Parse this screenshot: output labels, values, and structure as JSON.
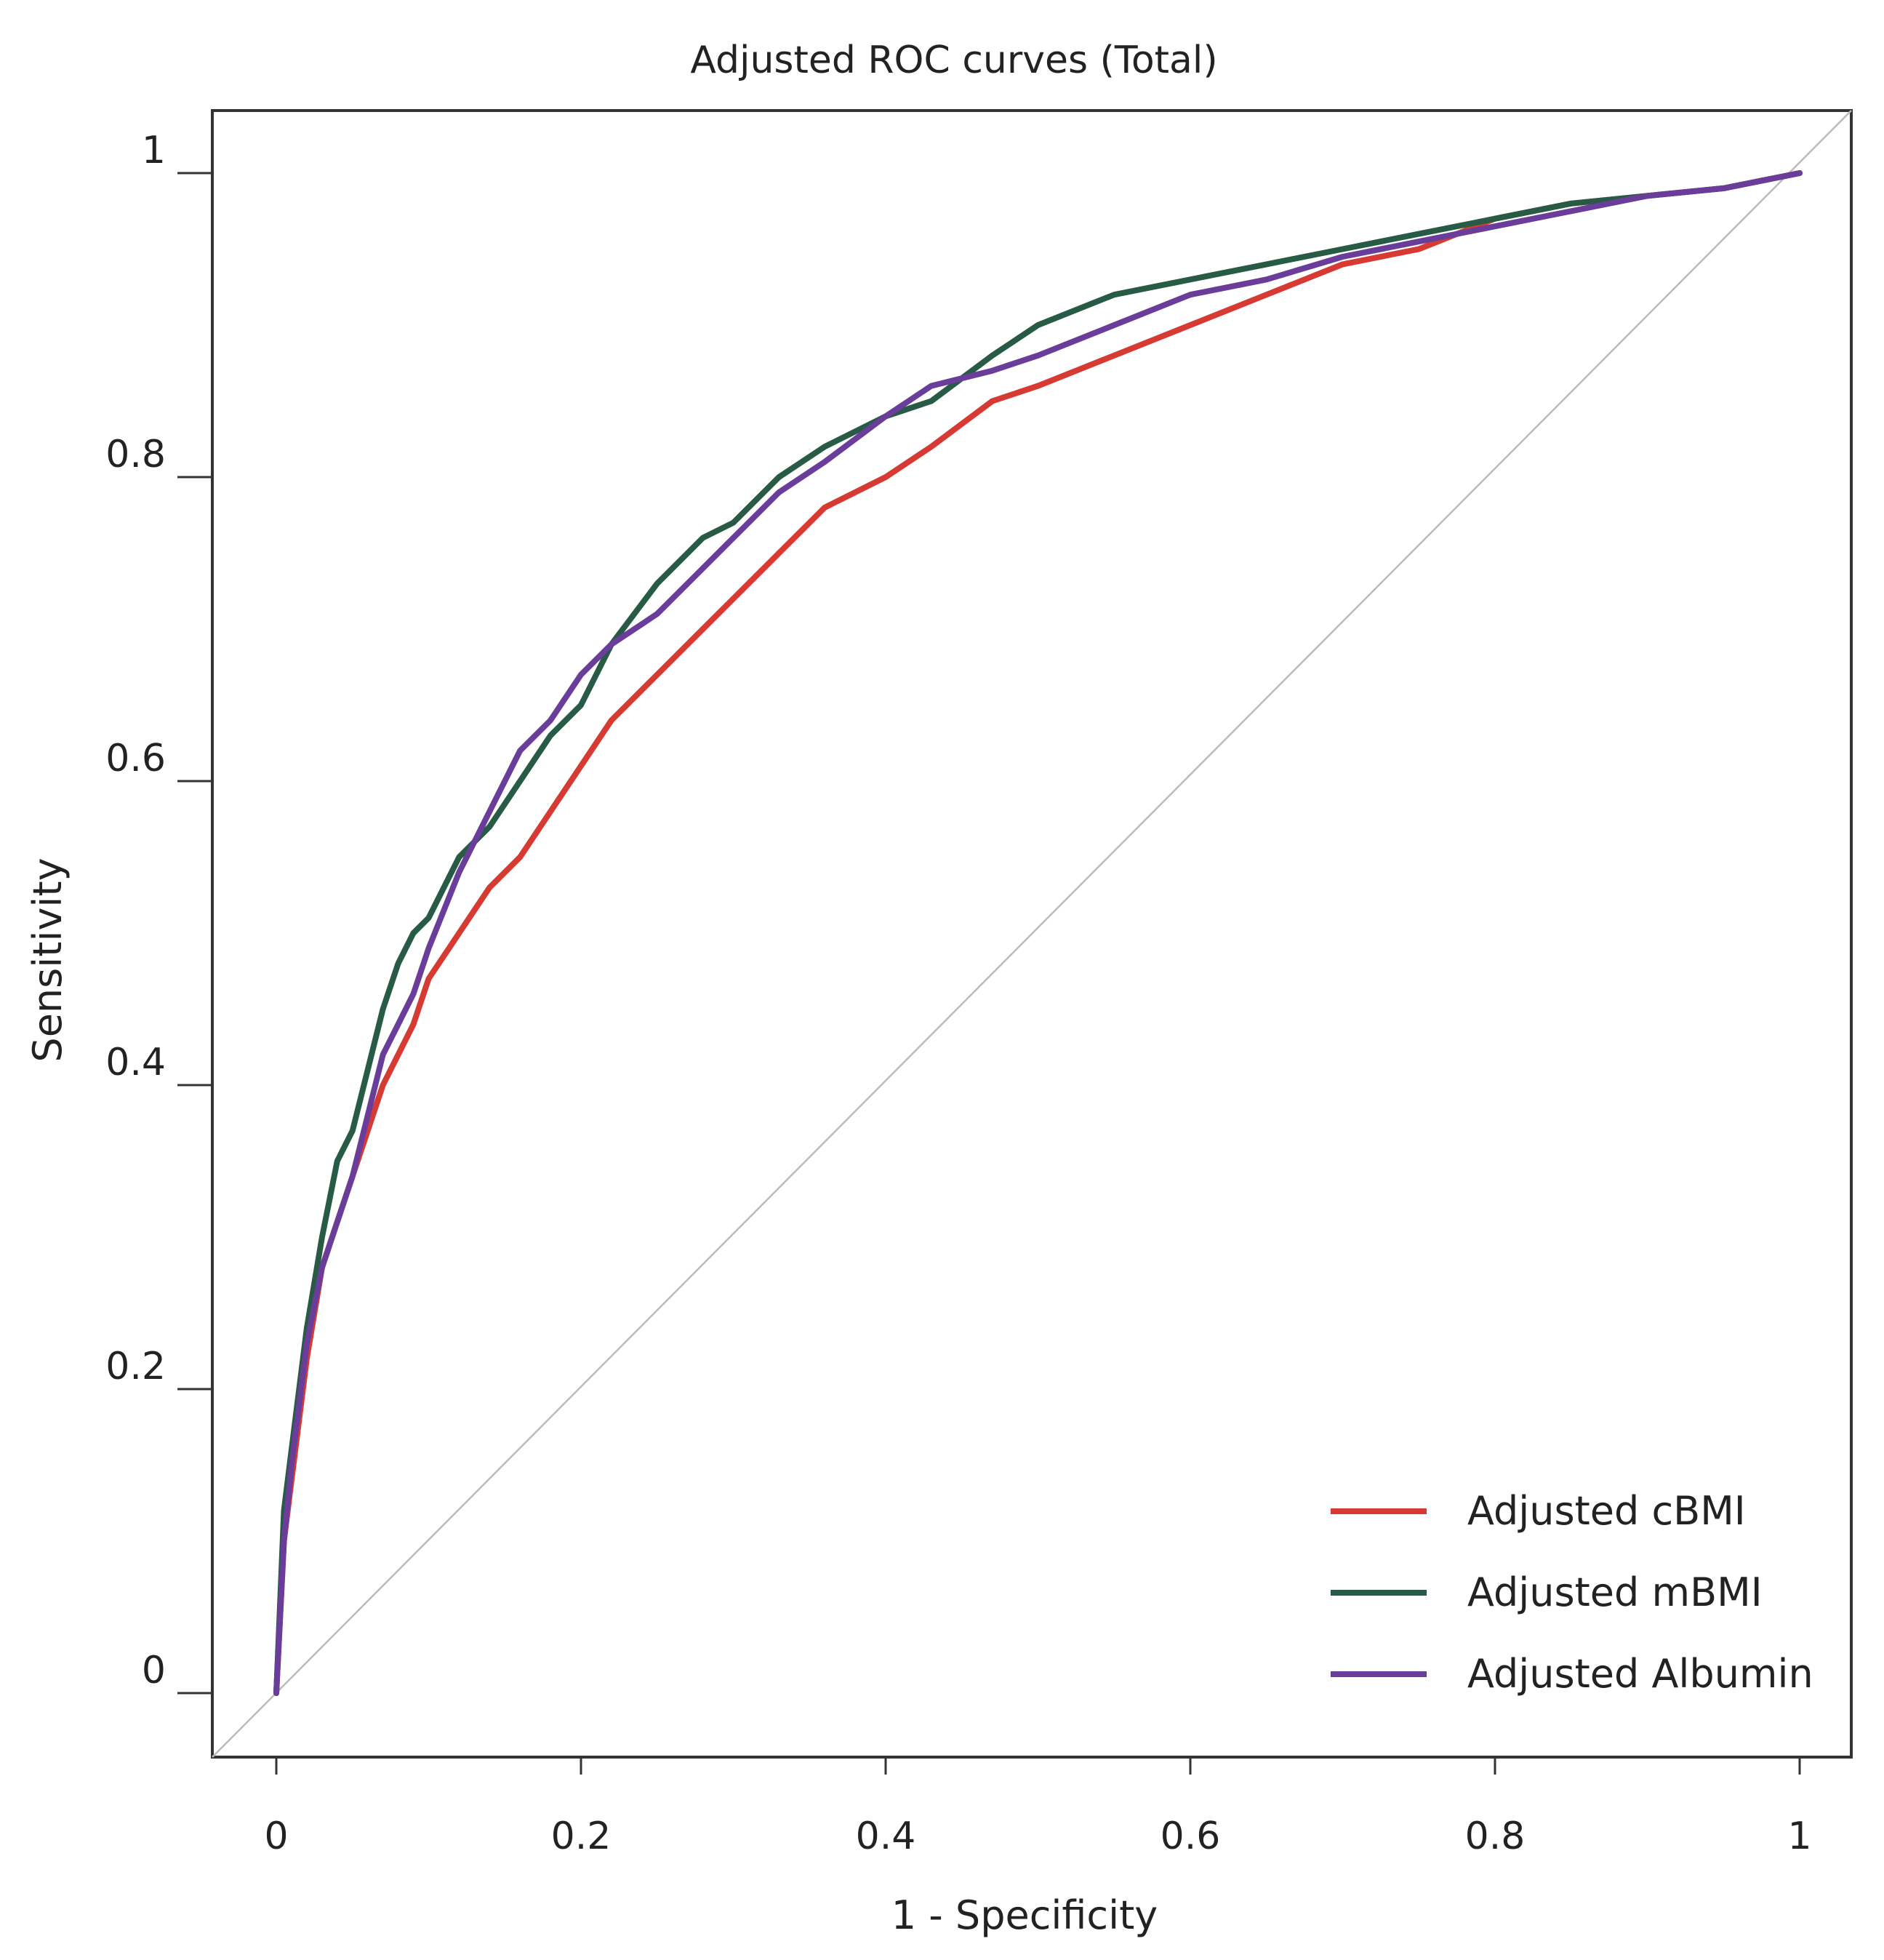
{
  "chart_data": {
    "type": "line",
    "title": "Adjusted ROC curves (Total)",
    "xlabel": "1 - Specificity",
    "ylabel": "Sensitivity",
    "xlim": [
      0,
      1
    ],
    "ylim": [
      0,
      1
    ],
    "x_ticks": [
      0,
      0.2,
      0.4,
      0.6,
      0.8,
      1
    ],
    "x_tick_labels": [
      "0",
      "0.2",
      "0.4",
      "0.6",
      "0.8",
      "1"
    ],
    "y_ticks": [
      0,
      0.2,
      0.4,
      0.6,
      0.8,
      1
    ],
    "y_tick_labels": [
      "0",
      "0.2",
      "0.4",
      "0.6",
      "0.8",
      "1"
    ],
    "grid": false,
    "legend_position": "bottom-right",
    "reference_line": {
      "name": "chance-diagonal",
      "color": "#bbbbbb"
    },
    "series": [
      {
        "name": "Adjusted cBMI",
        "color": "#d63a32",
        "x": [
          0,
          0.005,
          0.01,
          0.02,
          0.03,
          0.04,
          0.05,
          0.06,
          0.07,
          0.08,
          0.09,
          0.1,
          0.12,
          0.14,
          0.16,
          0.18,
          0.2,
          0.22,
          0.25,
          0.28,
          0.3,
          0.33,
          0.36,
          0.4,
          0.43,
          0.47,
          0.5,
          0.55,
          0.6,
          0.65,
          0.7,
          0.75,
          0.8,
          0.85,
          0.9,
          0.95,
          1
        ],
        "y": [
          0,
          0.1,
          0.14,
          0.22,
          0.28,
          0.31,
          0.34,
          0.37,
          0.4,
          0.42,
          0.44,
          0.47,
          0.5,
          0.53,
          0.55,
          0.58,
          0.61,
          0.64,
          0.67,
          0.7,
          0.72,
          0.75,
          0.78,
          0.8,
          0.82,
          0.85,
          0.86,
          0.88,
          0.9,
          0.92,
          0.94,
          0.95,
          0.97,
          0.98,
          0.985,
          0.99,
          1
        ]
      },
      {
        "name": "Adjusted mBMI",
        "color": "#275b45",
        "x": [
          0,
          0.005,
          0.01,
          0.02,
          0.03,
          0.04,
          0.05,
          0.06,
          0.07,
          0.08,
          0.09,
          0.1,
          0.12,
          0.14,
          0.16,
          0.18,
          0.2,
          0.22,
          0.25,
          0.28,
          0.3,
          0.33,
          0.36,
          0.4,
          0.43,
          0.47,
          0.5,
          0.55,
          0.6,
          0.65,
          0.7,
          0.75,
          0.8,
          0.85,
          0.9,
          0.95,
          1
        ],
        "y": [
          0,
          0.12,
          0.16,
          0.24,
          0.3,
          0.35,
          0.37,
          0.41,
          0.45,
          0.48,
          0.5,
          0.51,
          0.55,
          0.57,
          0.6,
          0.63,
          0.65,
          0.69,
          0.73,
          0.76,
          0.77,
          0.8,
          0.82,
          0.84,
          0.85,
          0.88,
          0.9,
          0.92,
          0.93,
          0.94,
          0.95,
          0.96,
          0.97,
          0.98,
          0.985,
          0.99,
          1
        ]
      },
      {
        "name": "Adjusted Albumin",
        "color": "#6a3d9a",
        "x": [
          0,
          0.005,
          0.01,
          0.02,
          0.03,
          0.04,
          0.05,
          0.06,
          0.07,
          0.08,
          0.09,
          0.1,
          0.12,
          0.14,
          0.16,
          0.18,
          0.2,
          0.22,
          0.25,
          0.28,
          0.3,
          0.33,
          0.36,
          0.4,
          0.43,
          0.47,
          0.5,
          0.55,
          0.6,
          0.65,
          0.7,
          0.75,
          0.8,
          0.85,
          0.9,
          0.95,
          1
        ],
        "y": [
          0,
          0.1,
          0.15,
          0.23,
          0.28,
          0.31,
          0.34,
          0.38,
          0.42,
          0.44,
          0.46,
          0.49,
          0.54,
          0.58,
          0.62,
          0.64,
          0.67,
          0.69,
          0.71,
          0.74,
          0.76,
          0.79,
          0.81,
          0.84,
          0.86,
          0.87,
          0.88,
          0.9,
          0.92,
          0.93,
          0.945,
          0.955,
          0.965,
          0.975,
          0.985,
          0.99,
          1
        ]
      }
    ]
  }
}
